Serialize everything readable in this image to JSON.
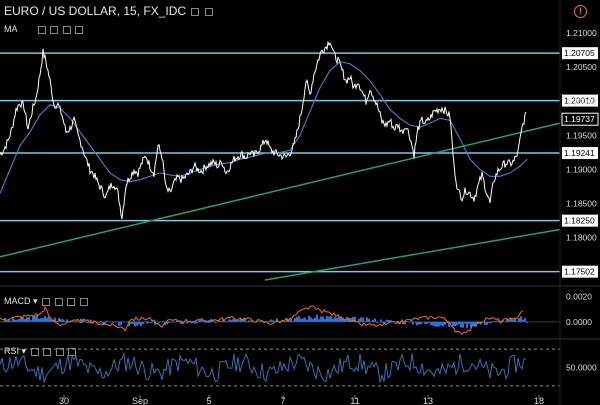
{
  "header": {
    "title": "EURO / US DOLLAR, 15, FX_IDC",
    "ma_label": "MA",
    "macd_label": "MACD",
    "rsi_label": "RSI",
    "warning_glyph": "!"
  },
  "colors": {
    "background": "#000000",
    "price": "#ffffff",
    "ma": "#4a7fc0",
    "level_line": "#7ec8d8",
    "trend_line": "#2a9d7c",
    "macd_line": "#e0702a",
    "macd_hist": "#2f6fd6",
    "rsi_line": "#3a6ea5",
    "rsi_band": "#888888"
  },
  "chart_data": {
    "type": "line",
    "symbol": "EURO / US DOLLAR",
    "interval": "15",
    "source": "FX_IDC",
    "x_ticks": [
      "30",
      "Sep",
      "5",
      "7",
      "11",
      "13",
      "18"
    ],
    "y_ticks": [
      "1.21000",
      "1.20500",
      "1.20000",
      "1.19500",
      "1.19000",
      "1.18500",
      "1.18000"
    ],
    "ylim": [
      1.1738,
      1.2125
    ],
    "price_series": [
      [
        0,
        1.1922
      ],
      [
        4,
        1.193
      ],
      [
        8,
        1.1942
      ],
      [
        12,
        1.196
      ],
      [
        16,
        1.1988
      ],
      [
        20,
        1.1998
      ],
      [
        24,
        1.1992
      ],
      [
        28,
        1.196
      ],
      [
        32,
        1.1985
      ],
      [
        36,
        1.2005
      ],
      [
        40,
        1.204
      ],
      [
        43,
        1.2072
      ],
      [
        46,
        1.2058
      ],
      [
        50,
        1.203
      ],
      [
        54,
        1.1995
      ],
      [
        58,
        1.1995
      ],
      [
        62,
        1.198
      ],
      [
        66,
        1.1955
      ],
      [
        70,
        1.196
      ],
      [
        74,
        1.1972
      ],
      [
        78,
        1.195
      ],
      [
        82,
        1.1935
      ],
      [
        86,
        1.1915
      ],
      [
        90,
        1.19
      ],
      [
        94,
        1.1892
      ],
      [
        98,
        1.188
      ],
      [
        102,
        1.187
      ],
      [
        106,
        1.186
      ],
      [
        110,
        1.1875
      ],
      [
        114,
        1.188
      ],
      [
        118,
        1.1865
      ],
      [
        122,
        1.183
      ],
      [
        126,
        1.1878
      ],
      [
        130,
        1.189
      ],
      [
        134,
        1.19
      ],
      [
        138,
        1.1895
      ],
      [
        142,
        1.191
      ],
      [
        146,
        1.192
      ],
      [
        150,
        1.1905
      ],
      [
        154,
        1.1895
      ],
      [
        158,
        1.1935
      ],
      [
        162,
        1.192
      ],
      [
        166,
        1.1872
      ],
      [
        170,
        1.1865
      ],
      [
        174,
        1.188
      ],
      [
        178,
        1.1888
      ],
      [
        182,
        1.1885
      ],
      [
        186,
        1.189
      ],
      [
        190,
        1.1895
      ],
      [
        194,
        1.1905
      ],
      [
        198,
        1.19
      ],
      [
        202,
        1.1898
      ],
      [
        206,
        1.1905
      ],
      [
        210,
        1.1908
      ],
      [
        214,
        1.191
      ],
      [
        218,
        1.1905
      ],
      [
        222,
        1.1912
      ],
      [
        226,
        1.1895
      ],
      [
        230,
        1.1905
      ],
      [
        234,
        1.1915
      ],
      [
        238,
        1.192
      ],
      [
        242,
        1.1922
      ],
      [
        246,
        1.1918
      ],
      [
        250,
        1.1925
      ],
      [
        254,
        1.192
      ],
      [
        258,
        1.1928
      ],
      [
        262,
        1.1935
      ],
      [
        266,
        1.1945
      ],
      [
        270,
        1.193
      ],
      [
        274,
        1.1925
      ],
      [
        278,
        1.1922
      ],
      [
        282,
        1.192
      ],
      [
        286,
        1.1918
      ],
      [
        290,
        1.1925
      ],
      [
        294,
        1.1935
      ],
      [
        298,
        1.196
      ],
      [
        302,
        1.199
      ],
      [
        306,
        1.203
      ],
      [
        310,
        1.201
      ],
      [
        314,
        1.204
      ],
      [
        318,
        1.206
      ],
      [
        322,
        1.2075
      ],
      [
        326,
        1.208
      ],
      [
        330,
        1.209
      ],
      [
        334,
        1.2068
      ],
      [
        338,
        1.206
      ],
      [
        342,
        1.2045
      ],
      [
        346,
        1.203
      ],
      [
        350,
        1.2035
      ],
      [
        354,
        1.202
      ],
      [
        358,
        1.203
      ],
      [
        362,
        1.2015
      ],
      [
        366,
        1.2
      ],
      [
        370,
        1.202
      ],
      [
        374,
        1.2005
      ],
      [
        378,
        1.199
      ],
      [
        382,
        1.197
      ],
      [
        386,
        1.1965
      ],
      [
        390,
        1.1972
      ],
      [
        394,
        1.196
      ],
      [
        398,
        1.1965
      ],
      [
        402,
        1.1955
      ],
      [
        406,
        1.1965
      ],
      [
        410,
        1.1948
      ],
      [
        414,
        1.1922
      ],
      [
        418,
        1.196
      ],
      [
        422,
        1.1972
      ],
      [
        426,
        1.1968
      ],
      [
        430,
        1.1975
      ],
      [
        434,
        1.1985
      ],
      [
        438,
        1.1988
      ],
      [
        442,
        1.199
      ],
      [
        446,
        1.1985
      ],
      [
        450,
        1.1978
      ],
      [
        454,
        1.1905
      ],
      [
        458,
        1.1868
      ],
      [
        462,
        1.186
      ],
      [
        466,
        1.187
      ],
      [
        470,
        1.1865
      ],
      [
        474,
        1.1858
      ],
      [
        478,
        1.1875
      ],
      [
        482,
        1.1892
      ],
      [
        486,
        1.187
      ],
      [
        490,
        1.185
      ],
      [
        494,
        1.1885
      ],
      [
        498,
        1.1898
      ],
      [
        502,
        1.1905
      ],
      [
        506,
        1.191
      ],
      [
        510,
        1.1908
      ],
      [
        514,
        1.1912
      ],
      [
        518,
        1.1925
      ],
      [
        522,
        1.196
      ],
      [
        526,
        1.1984
      ]
    ],
    "ma_series": [
      [
        0,
        1.1865
      ],
      [
        10,
        1.19
      ],
      [
        20,
        1.1935
      ],
      [
        30,
        1.1955
      ],
      [
        40,
        1.198
      ],
      [
        50,
        1.1995
      ],
      [
        60,
        1.199
      ],
      [
        70,
        1.1975
      ],
      [
        80,
        1.1955
      ],
      [
        90,
        1.1935
      ],
      [
        100,
        1.1915
      ],
      [
        110,
        1.1895
      ],
      [
        120,
        1.1885
      ],
      [
        130,
        1.1882
      ],
      [
        140,
        1.1885
      ],
      [
        150,
        1.189
      ],
      [
        160,
        1.1895
      ],
      [
        170,
        1.1892
      ],
      [
        180,
        1.189
      ],
      [
        190,
        1.1895
      ],
      [
        200,
        1.19
      ],
      [
        210,
        1.1905
      ],
      [
        220,
        1.1908
      ],
      [
        230,
        1.191
      ],
      [
        240,
        1.1915
      ],
      [
        250,
        1.1918
      ],
      [
        260,
        1.1922
      ],
      [
        270,
        1.1925
      ],
      [
        280,
        1.1925
      ],
      [
        290,
        1.1928
      ],
      [
        300,
        1.195
      ],
      [
        310,
        1.1985
      ],
      [
        320,
        1.202
      ],
      [
        330,
        1.2045
      ],
      [
        340,
        1.2058
      ],
      [
        350,
        1.2055
      ],
      [
        360,
        1.2045
      ],
      [
        370,
        1.203
      ],
      [
        380,
        1.201
      ],
      [
        390,
        1.1988
      ],
      [
        400,
        1.1975
      ],
      [
        410,
        1.1965
      ],
      [
        420,
        1.1962
      ],
      [
        430,
        1.1968
      ],
      [
        440,
        1.1975
      ],
      [
        450,
        1.1972
      ],
      [
        460,
        1.1945
      ],
      [
        470,
        1.1915
      ],
      [
        480,
        1.19
      ],
      [
        490,
        1.189
      ],
      [
        500,
        1.189
      ],
      [
        510,
        1.1895
      ],
      [
        520,
        1.1905
      ],
      [
        527,
        1.1915
      ]
    ],
    "horizontal_levels": [
      {
        "label": "1.20705",
        "value": 1.20705
      },
      {
        "label": "1.20010",
        "value": 1.2001
      },
      {
        "label": "1.19241",
        "value": 1.19241
      },
      {
        "label": "1.18250",
        "value": 1.1825
      },
      {
        "label": "1.17502",
        "value": 1.17502
      }
    ],
    "trend_lines": [
      {
        "from": [
          0,
          1.1772
        ],
        "to": [
          560,
          1.1968
        ]
      },
      {
        "from": [
          265,
          1.1738
        ],
        "to": [
          560,
          1.1812
        ]
      }
    ],
    "last_price": {
      "label": "1.19737",
      "value": 1.19737
    },
    "macd": {
      "y_ticks": [
        "0.0020",
        "0.0000"
      ],
      "ylim": [
        -0.0012,
        0.0026
      ],
      "line": [
        [
          0,
          0.0002
        ],
        [
          20,
          0.0004
        ],
        [
          40,
          0.0006
        ],
        [
          45,
          0.0011
        ],
        [
          50,
          0.0003
        ],
        [
          60,
          -0.0002
        ],
        [
          80,
          0.0001
        ],
        [
          100,
          -0.0001
        ],
        [
          120,
          -0.0004
        ],
        [
          125,
          -0.0006
        ],
        [
          130,
          0.0002
        ],
        [
          150,
          0.0003
        ],
        [
          160,
          -0.0004
        ],
        [
          170,
          0.0001
        ],
        [
          190,
          0.0001
        ],
        [
          210,
          0.0001
        ],
        [
          230,
          0.0003
        ],
        [
          250,
          0.0002
        ],
        [
          270,
          -0.0001
        ],
        [
          290,
          0.0002
        ],
        [
          300,
          0.0008
        ],
        [
          310,
          0.0012
        ],
        [
          320,
          0.0009
        ],
        [
          330,
          0.0007
        ],
        [
          340,
          0.0004
        ],
        [
          350,
          0.0001
        ],
        [
          360,
          -0.0002
        ],
        [
          380,
          -0.0003
        ],
        [
          400,
          0.0
        ],
        [
          420,
          0.0003
        ],
        [
          440,
          0.0004
        ],
        [
          450,
          0.0
        ],
        [
          455,
          -0.0008
        ],
        [
          460,
          -0.0009
        ],
        [
          470,
          -0.0006
        ],
        [
          480,
          0.0
        ],
        [
          490,
          0.0003
        ],
        [
          500,
          0.0001
        ],
        [
          515,
          0.0002
        ],
        [
          525,
          0.0012
        ]
      ],
      "histogram": [
        [
          0,
          0.0001
        ],
        [
          40,
          0.0004
        ],
        [
          45,
          0.0003
        ],
        [
          125,
          -0.0002
        ],
        [
          300,
          0.0003
        ],
        [
          320,
          0.0004
        ],
        [
          455,
          -0.0003
        ],
        [
          465,
          -0.0003
        ],
        [
          525,
          0.0003
        ]
      ]
    },
    "rsi": {
      "y_ticks": [
        "50.0000"
      ],
      "ylim": [
        20,
        80
      ],
      "bands": [
        70,
        30
      ]
    }
  }
}
